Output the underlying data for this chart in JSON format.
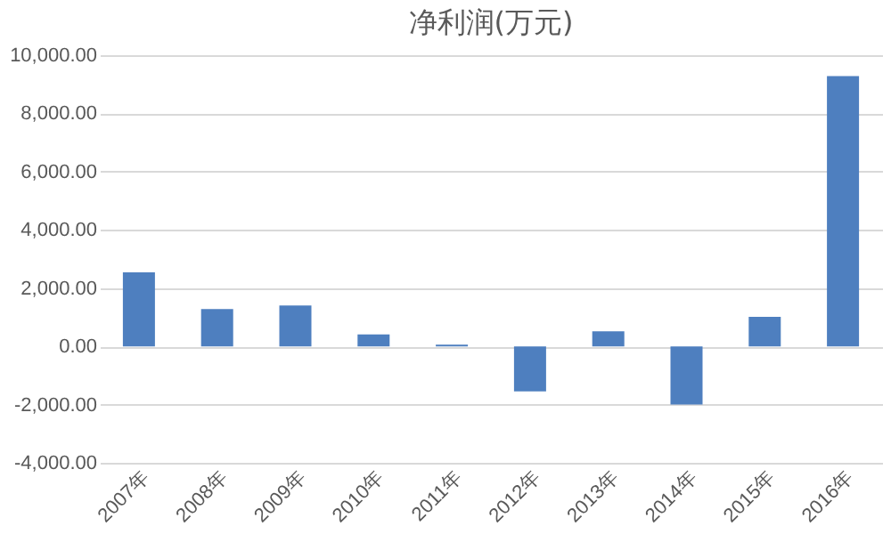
{
  "chart_data": {
    "type": "bar",
    "title": "净利润(万元)",
    "categories": [
      "2007年",
      "2008年",
      "2009年",
      "2010年",
      "2011年",
      "2012年",
      "2013年",
      "2014年",
      "2015年",
      "2016年"
    ],
    "values": [
      2540,
      1280,
      1400,
      410,
      60,
      -1550,
      520,
      -2000,
      1010,
      9280
    ],
    "color": "#4e7fbf",
    "ylim": [
      -4000,
      10000
    ],
    "yticks": [
      {
        "value": -4000,
        "label": "-4,000.00"
      },
      {
        "value": -2000,
        "label": "-2,000.00"
      },
      {
        "value": 0,
        "label": "0.00"
      },
      {
        "value": 2000,
        "label": "2,000.00"
      },
      {
        "value": 4000,
        "label": "4,000.00"
      },
      {
        "value": 6000,
        "label": "6,000.00"
      },
      {
        "value": 8000,
        "label": "8,000.00"
      },
      {
        "value": 10000,
        "label": "10,000.00"
      }
    ],
    "grid": "y"
  }
}
